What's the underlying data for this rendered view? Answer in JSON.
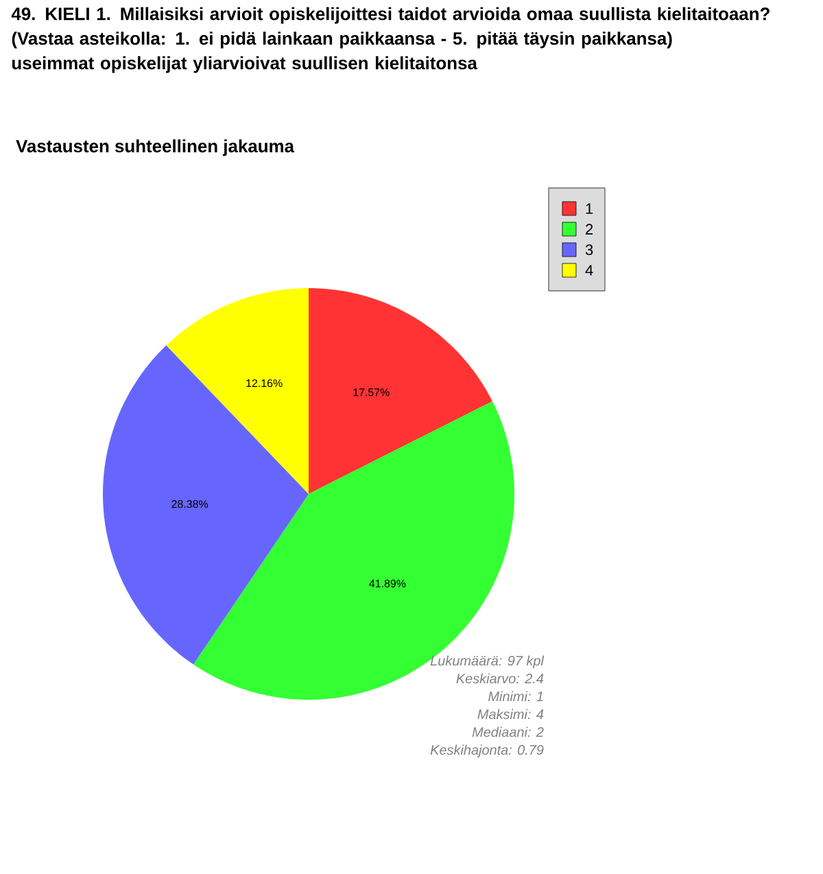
{
  "chart_data": {
    "type": "pie",
    "title": "49. KIELI 1. Millaisiksi arvioit opiskelijoittesi taidot arvioida omaa suullista kielitaitoaan? (Vastaa asteikolla: 1. ei pidä lainkaan paikkaansa - 5. pitää täysin paikkansa)",
    "subtitle": "useimmat opiskelijat yliarvioivat suullisen kielitaitonsa",
    "categories": [
      "1",
      "2",
      "3",
      "4"
    ],
    "values": [
      17.57,
      41.89,
      28.38,
      12.16
    ],
    "colors": [
      "#ff3333",
      "#33ff33",
      "#6666ff",
      "#ffff00"
    ],
    "value_labels": [
      "17.57%",
      "41.89%",
      "28.38%",
      "12.16%"
    ],
    "legend": "top right",
    "annotations": [
      "Vastausten suhteellinen jakauma",
      "Lukumäärä: 97 kpl",
      "Keskiarvo: 2.4",
      "Minimi: 1",
      "Maksimi: 4",
      "Mediaani: 2",
      "Keskihajonta: 0.79"
    ]
  }
}
